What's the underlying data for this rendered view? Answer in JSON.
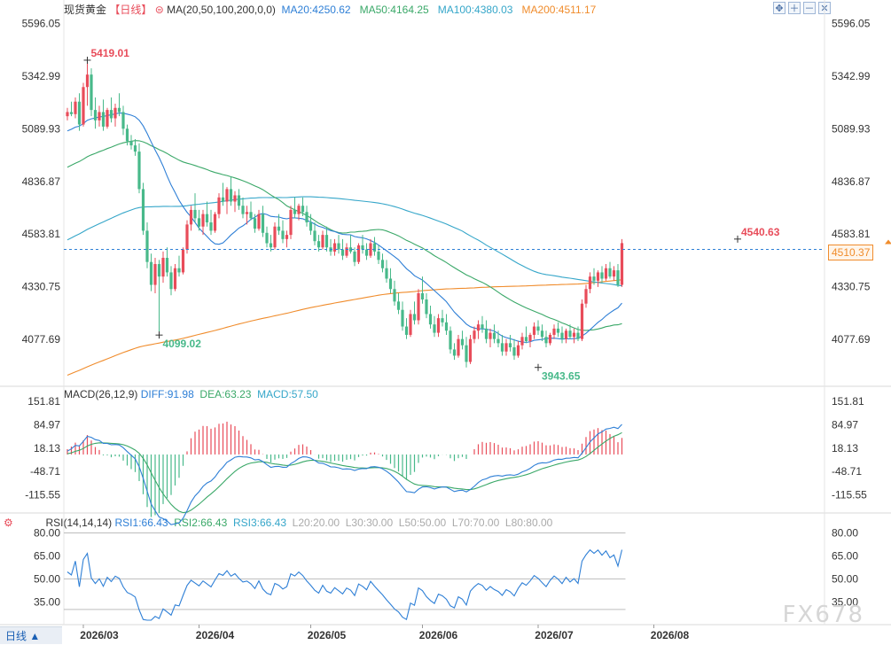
{
  "header": {
    "symbol": "现货黄金",
    "period": "【日线】",
    "ma_label": "MA(20,50,100,200,0,0)",
    "ma20": "MA20:4250.62",
    "ma50": "MA50:4164.25",
    "ma100": "MA100:4380.03",
    "ma200": "MA200:4511.17"
  },
  "toolbar": {
    "icons": [
      "fullscreen-icon",
      "zoom-in-icon",
      "zoom-out-icon",
      "close-icon"
    ]
  },
  "macd_header": {
    "label": "MACD(26,12,9)",
    "diff": "DIFF:91.98",
    "dea": "DEA:63.23",
    "macd": "MACD:57.50"
  },
  "rsi_header": {
    "label": "RSI(14,14,14)",
    "rsi1": "RSI1:66.43",
    "rsi2": "RSI2:66.43",
    "rsi3": "RSI3:66.43",
    "l20": "L20:20.00",
    "l30": "L30:30.00",
    "l50": "L50:50.00",
    "l70": "L70:70.00",
    "l80": "L80:80.00"
  },
  "period_button": "日线 ▲",
  "watermark": "FX678",
  "current_price": "4510.37",
  "colors": {
    "up": "#e84c5a",
    "down": "#48b98a",
    "ma20": "#2e7fd6",
    "ma50": "#3aa868",
    "ma100": "#35a6c9",
    "ma200": "#f08c2c",
    "diff": "#2e7fd6",
    "dea": "#3aa868",
    "rsi": "#2e7fd6"
  },
  "chart_data": [
    {
      "type": "candlestick",
      "price_axis_ticks": [
        "5596.05",
        "5342.99",
        "5089.93",
        "4836.87",
        "4583.81",
        "4330.75",
        "4077.69"
      ],
      "ylim": [
        3870,
        5640
      ],
      "x_ticks": [
        "2026/03",
        "2026/04",
        "2026/05",
        "2026/06",
        "2026/07",
        "2026/08"
      ],
      "x_tick_index": [
        4,
        33,
        61,
        89,
        118,
        147
      ],
      "annotations": {
        "high": "5419.01",
        "high_index": 5,
        "low1": "4099.02",
        "low1_index": 23,
        "low2": "3943.65",
        "low2_index": 118,
        "last": "4540.63",
        "last_index": 168
      },
      "ohlc": [
        [
          5150,
          5190,
          5130,
          5170
        ],
        [
          5170,
          5220,
          5150,
          5160
        ],
        [
          5160,
          5240,
          5140,
          5220
        ],
        [
          5220,
          5260,
          5080,
          5110
        ],
        [
          5110,
          5310,
          5100,
          5290
        ],
        [
          5290,
          5419.01,
          5200,
          5350
        ],
        [
          5350,
          5380,
          5150,
          5180
        ],
        [
          5180,
          5240,
          5090,
          5130
        ],
        [
          5130,
          5200,
          5100,
          5170
        ],
        [
          5170,
          5230,
          5080,
          5100
        ],
        [
          5100,
          5190,
          5090,
          5180
        ],
        [
          5180,
          5240,
          5120,
          5140
        ],
        [
          5140,
          5210,
          5100,
          5190
        ],
        [
          5190,
          5260,
          5150,
          5170
        ],
        [
          5170,
          5200,
          5060,
          5090
        ],
        [
          5090,
          5110,
          5010,
          5030
        ],
        [
          5030,
          5060,
          4990,
          5010
        ],
        [
          5010,
          5040,
          4960,
          4980
        ],
        [
          4980,
          5020,
          4780,
          4800
        ],
        [
          4800,
          4830,
          4580,
          4600
        ],
        [
          4600,
          4640,
          4420,
          4450
        ],
        [
          4450,
          4490,
          4310,
          4340
        ],
        [
          4340,
          4470,
          4300,
          4440
        ],
        [
          4440,
          4460,
          4099.02,
          4380
        ],
        [
          4380,
          4500,
          4350,
          4470
        ],
        [
          4470,
          4520,
          4380,
          4400
        ],
        [
          4400,
          4430,
          4290,
          4320
        ],
        [
          4320,
          4440,
          4310,
          4420
        ],
        [
          4420,
          4480,
          4380,
          4400
        ],
        [
          4400,
          4520,
          4390,
          4510
        ],
        [
          4510,
          4650,
          4490,
          4630
        ],
        [
          4630,
          4720,
          4600,
          4700
        ],
        [
          4700,
          4780,
          4640,
          4660
        ],
        [
          4660,
          4700,
          4600,
          4620
        ],
        [
          4620,
          4700,
          4580,
          4680
        ],
        [
          4680,
          4740,
          4620,
          4640
        ],
        [
          4640,
          4700,
          4580,
          4600
        ],
        [
          4600,
          4690,
          4590,
          4680
        ],
        [
          4680,
          4780,
          4660,
          4760
        ],
        [
          4760,
          4830,
          4720,
          4740
        ],
        [
          4740,
          4810,
          4680,
          4800
        ],
        [
          4800,
          4860,
          4720,
          4740
        ],
        [
          4740,
          4790,
          4690,
          4770
        ],
        [
          4770,
          4800,
          4700,
          4720
        ],
        [
          4720,
          4760,
          4660,
          4680
        ],
        [
          4680,
          4720,
          4630,
          4690
        ],
        [
          4690,
          4740,
          4650,
          4660
        ],
        [
          4660,
          4680,
          4590,
          4610
        ],
        [
          4610,
          4700,
          4600,
          4680
        ],
        [
          4680,
          4720,
          4570,
          4590
        ],
        [
          4590,
          4620,
          4520,
          4540
        ],
        [
          4540,
          4580,
          4500,
          4520
        ],
        [
          4520,
          4640,
          4510,
          4620
        ],
        [
          4620,
          4680,
          4580,
          4600
        ],
        [
          4600,
          4650,
          4540,
          4560
        ],
        [
          4560,
          4600,
          4520,
          4580
        ],
        [
          4580,
          4720,
          4560,
          4700
        ],
        [
          4700,
          4760,
          4660,
          4680
        ],
        [
          4680,
          4730,
          4650,
          4720
        ],
        [
          4720,
          4760,
          4670,
          4690
        ],
        [
          4690,
          4720,
          4620,
          4640
        ],
        [
          4640,
          4680,
          4580,
          4600
        ],
        [
          4600,
          4640,
          4530,
          4550
        ],
        [
          4550,
          4580,
          4500,
          4520
        ],
        [
          4520,
          4600,
          4510,
          4580
        ],
        [
          4580,
          4620,
          4500,
          4520
        ],
        [
          4520,
          4560,
          4480,
          4500
        ],
        [
          4500,
          4560,
          4480,
          4540
        ],
        [
          4540,
          4580,
          4490,
          4510
        ],
        [
          4510,
          4560,
          4460,
          4480
        ],
        [
          4480,
          4540,
          4470,
          4520
        ],
        [
          4520,
          4580,
          4490,
          4500
        ],
        [
          4500,
          4520,
          4430,
          4450
        ],
        [
          4450,
          4540,
          4440,
          4530
        ],
        [
          4530,
          4580,
          4490,
          4510
        ],
        [
          4510,
          4540,
          4460,
          4480
        ],
        [
          4480,
          4560,
          4470,
          4540
        ],
        [
          4540,
          4570,
          4480,
          4500
        ],
        [
          4500,
          4530,
          4440,
          4460
        ],
        [
          4460,
          4490,
          4400,
          4420
        ],
        [
          4420,
          4460,
          4350,
          4370
        ],
        [
          4370,
          4420,
          4300,
          4320
        ],
        [
          4320,
          4360,
          4240,
          4260
        ],
        [
          4260,
          4300,
          4200,
          4220
        ],
        [
          4220,
          4260,
          4120,
          4140
        ],
        [
          4140,
          4180,
          4080,
          4100
        ],
        [
          4100,
          4220,
          4090,
          4200
        ],
        [
          4200,
          4260,
          4150,
          4170
        ],
        [
          4170,
          4320,
          4150,
          4300
        ],
        [
          4300,
          4380,
          4250,
          4270
        ],
        [
          4270,
          4300,
          4180,
          4200
        ],
        [
          4200,
          4240,
          4130,
          4150
        ],
        [
          4150,
          4190,
          4090,
          4110
        ],
        [
          4110,
          4200,
          4090,
          4180
        ],
        [
          4180,
          4220,
          4140,
          4160
        ],
        [
          4160,
          4200,
          4100,
          4120
        ],
        [
          4120,
          4140,
          4010,
          4030
        ],
        [
          4030,
          4060,
          3980,
          4000
        ],
        [
          4000,
          4100,
          3990,
          4080
        ],
        [
          4080,
          4120,
          4030,
          4050
        ],
        [
          4050,
          4090,
          3943.65,
          3970
        ],
        [
          3970,
          4100,
          3960,
          4080
        ],
        [
          4080,
          4140,
          4060,
          4120
        ],
        [
          4120,
          4170,
          4080,
          4150
        ],
        [
          4150,
          4190,
          4110,
          4130
        ],
        [
          4130,
          4170,
          4060,
          4080
        ],
        [
          4080,
          4130,
          4040,
          4110
        ],
        [
          4110,
          4150,
          4060,
          4080
        ],
        [
          4080,
          4120,
          4040,
          4060
        ],
        [
          4060,
          4100,
          4000,
          4020
        ],
        [
          4020,
          4080,
          4000,
          4060
        ],
        [
          4060,
          4100,
          4020,
          4040
        ],
        [
          4040,
          4080,
          3980,
          4000
        ],
        [
          4000,
          4070,
          3990,
          4050
        ],
        [
          4050,
          4110,
          4030,
          4090
        ],
        [
          4090,
          4140,
          4060,
          4070
        ],
        [
          4070,
          4110,
          4040,
          4100
        ],
        [
          4100,
          4160,
          4080,
          4140
        ],
        [
          4140,
          4170,
          4100,
          4120
        ],
        [
          4120,
          4150,
          4070,
          4090
        ],
        [
          4090,
          4120,
          4040,
          4060
        ],
        [
          4060,
          4110,
          4050,
          4100
        ],
        [
          4100,
          4150,
          4080,
          4130
        ],
        [
          4130,
          4160,
          4090,
          4110
        ],
        [
          4110,
          4140,
          4060,
          4080
        ],
        [
          4080,
          4130,
          4060,
          4120
        ],
        [
          4120,
          4150,
          4080,
          4090
        ],
        [
          4090,
          4130,
          4060,
          4110
        ],
        [
          4110,
          4140,
          4070,
          4080
        ],
        [
          4080,
          4270,
          4070,
          4250
        ],
        [
          4250,
          4340,
          4230,
          4320
        ],
        [
          4320,
          4400,
          4300,
          4380
        ],
        [
          4380,
          4420,
          4340,
          4360
        ],
        [
          4360,
          4410,
          4330,
          4400
        ],
        [
          4400,
          4430,
          4350,
          4370
        ],
        [
          4370,
          4440,
          4360,
          4420
        ],
        [
          4420,
          4450,
          4370,
          4380
        ],
        [
          4380,
          4430,
          4360,
          4410
        ],
        [
          4410,
          4440,
          4330,
          4340
        ],
        [
          4340,
          4560,
          4330,
          4540.63
        ]
      ]
    },
    {
      "type": "macd",
      "axis_ticks": [
        "151.81",
        "84.97",
        "18.13",
        "-48.71",
        "-115.55"
      ],
      "ylim": [
        -155,
        170
      ]
    },
    {
      "type": "rsi",
      "axis_ticks": [
        "80.00",
        "65.00",
        "50.00",
        "35.00"
      ],
      "ylim": [
        23,
        82
      ],
      "levels": [
        80,
        50,
        30
      ]
    }
  ]
}
